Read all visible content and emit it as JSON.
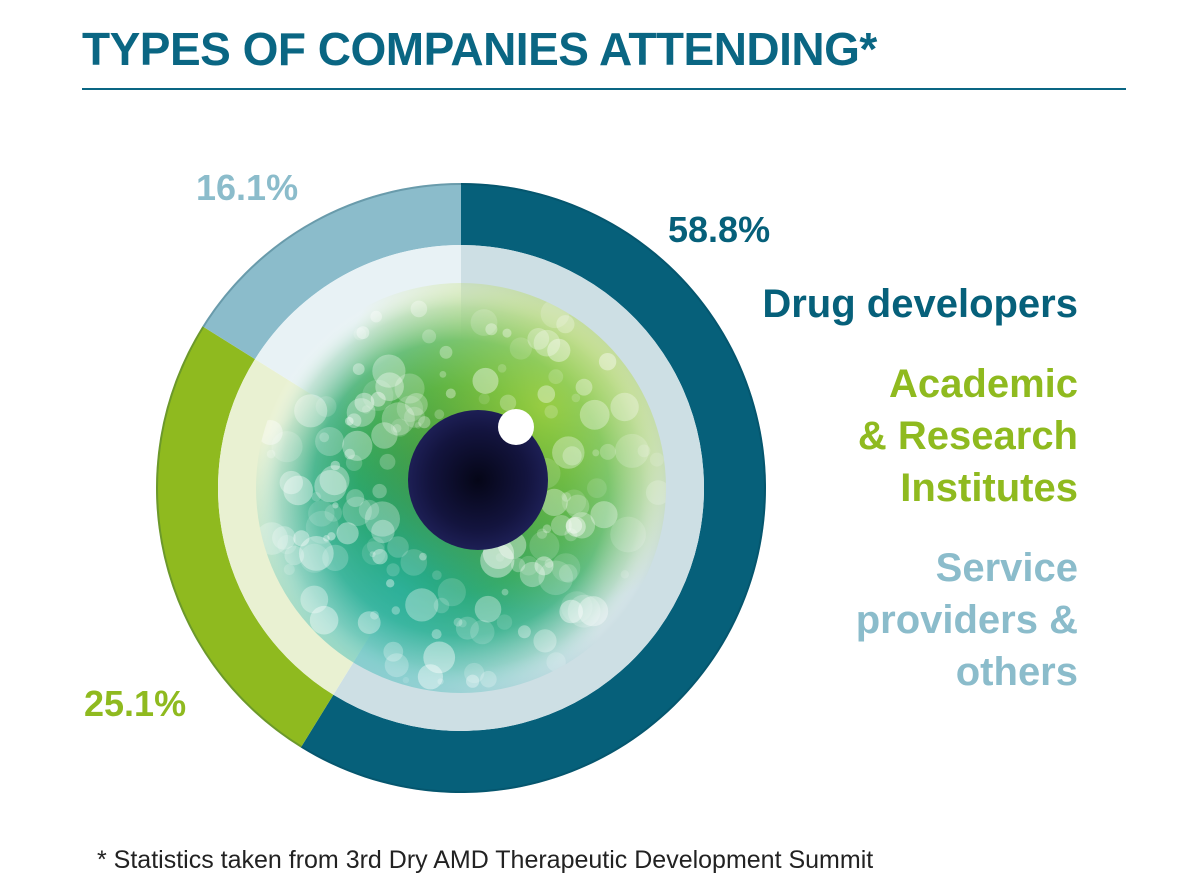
{
  "title": "TYPES OF COMPANIES ATTENDING*",
  "footnote": "* Statistics taken from 3rd Dry AMD Therapeutic Development Summit",
  "colors": {
    "title": "#0a6683",
    "drug": "#06607a",
    "academic": "#8fba1f",
    "service": "#8bbccb"
  },
  "legend": [
    {
      "lines": [
        "Drug developers"
      ],
      "color": "#06607a"
    },
    {
      "lines": [
        "Academic",
        "& Research",
        "Institutes"
      ],
      "color": "#8fba1f"
    },
    {
      "lines": [
        "Service",
        "providers &",
        "others"
      ],
      "color": "#8bbccb"
    }
  ],
  "chart_data": {
    "type": "pie",
    "style": "donut",
    "labels": [
      "Drug developers",
      "Academic & Research Institutes",
      "Service providers & others"
    ],
    "values": [
      58.8,
      25.1,
      16.1
    ],
    "value_labels": [
      "58.8%",
      "25.1%",
      "16.1%"
    ],
    "colors": [
      "#06607a",
      "#8fba1f",
      "#8bbccb"
    ],
    "legend_position": "right"
  }
}
